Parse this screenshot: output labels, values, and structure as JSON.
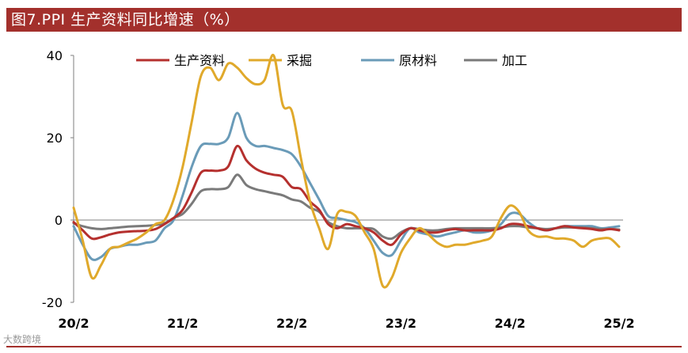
{
  "header": {
    "title": "图7.PPI 生产资料同比增速（%）"
  },
  "footer": {
    "source_mark": "大数跨境"
  },
  "colors": {
    "title_bg": "#a3302c",
    "生产资料": "#b5302e",
    "采掘": "#e0a92b",
    "原材料": "#6a9bb8",
    "加工": "#7a7a7a"
  },
  "chart_data": {
    "type": "line",
    "title": "图7.PPI 生产资料同比增速（%）",
    "xlabel": "",
    "ylabel": "",
    "x_ticks": [
      "20/2",
      "21/2",
      "22/2",
      "23/2",
      "24/2",
      "25/2"
    ],
    "y_ticks": [
      40,
      20,
      0,
      -20
    ],
    "ylim": [
      -20,
      40
    ],
    "legend_position": "top",
    "x": [
      "20/2",
      "20/3",
      "20/4",
      "20/5",
      "20/6",
      "20/7",
      "20/8",
      "20/9",
      "20/10",
      "20/11",
      "20/12",
      "21/1",
      "21/2",
      "21/3",
      "21/4",
      "21/5",
      "21/6",
      "21/7",
      "21/8",
      "21/9",
      "21/10",
      "21/11",
      "21/12",
      "22/1",
      "22/2",
      "22/3",
      "22/4",
      "22/5",
      "22/6",
      "22/7",
      "22/8",
      "22/9",
      "22/10",
      "22/11",
      "22/12",
      "23/1",
      "23/2",
      "23/3",
      "23/4",
      "23/5",
      "23/6",
      "23/7",
      "23/8",
      "23/9",
      "23/10",
      "23/11",
      "23/12",
      "24/1",
      "24/2",
      "24/3",
      "24/4",
      "24/5",
      "24/6",
      "24/7",
      "24/8",
      "24/9",
      "24/10",
      "24/11",
      "24/12",
      "25/1",
      "25/2"
    ],
    "series": [
      {
        "name": "生产资料",
        "color": "#b5302e",
        "values": [
          -0.5,
          -2.5,
          -4.5,
          -4.2,
          -3.5,
          -3.0,
          -2.8,
          -2.7,
          -2.6,
          -2.2,
          -1.0,
          0.5,
          2.5,
          6.8,
          11.5,
          12.0,
          12.0,
          13.0,
          18.0,
          14.5,
          12.5,
          11.5,
          11.0,
          10.5,
          8.0,
          7.5,
          4.5,
          2.5,
          -1.0,
          -2.0,
          -1.0,
          -1.5,
          -2.0,
          -3.0,
          -5.0,
          -6.0,
          -3.5,
          -2.0,
          -2.5,
          -3.0,
          -3.0,
          -2.5,
          -2.2,
          -2.5,
          -2.5,
          -2.5,
          -2.5,
          -2.0,
          -1.0,
          -1.0,
          -1.5,
          -2.0,
          -2.5,
          -2.0,
          -1.5,
          -1.8,
          -2.0,
          -2.2,
          -2.5,
          -2.2,
          -2.5
        ]
      },
      {
        "name": "采掘",
        "color": "#e0a92b",
        "values": [
          3.0,
          -5.0,
          -14.0,
          -11.0,
          -7.0,
          -6.5,
          -5.5,
          -4.5,
          -3.0,
          -1.0,
          0.0,
          5.0,
          13.0,
          24.0,
          35.0,
          37.0,
          34.0,
          38.0,
          37.0,
          34.5,
          33.0,
          34.0,
          40.0,
          28.0,
          26.5,
          15.0,
          4.5,
          -2.0,
          -7.0,
          1.5,
          2.0,
          1.0,
          -3.0,
          -7.0,
          -16.0,
          -14.0,
          -8.0,
          -4.5,
          -2.0,
          -3.5,
          -5.5,
          -6.5,
          -6.0,
          -6.0,
          -5.5,
          -5.0,
          -4.0,
          0.5,
          3.5,
          2.0,
          -2.5,
          -4.0,
          -4.0,
          -4.5,
          -4.5,
          -5.0,
          -6.5,
          -5.0,
          -4.5,
          -4.5,
          -6.5
        ]
      },
      {
        "name": "原材料",
        "color": "#6a9bb8",
        "values": [
          -1.5,
          -6.0,
          -9.5,
          -9.0,
          -7.0,
          -6.5,
          -6.0,
          -6.0,
          -5.5,
          -5.0,
          -2.0,
          0.0,
          6.0,
          13.0,
          18.0,
          18.5,
          18.5,
          20.0,
          26.0,
          20.0,
          18.0,
          18.0,
          17.5,
          17.0,
          16.0,
          13.0,
          9.0,
          5.0,
          1.0,
          0.5,
          0.0,
          -0.5,
          -2.0,
          -5.0,
          -8.0,
          -8.5,
          -5.0,
          -2.0,
          -3.0,
          -3.5,
          -4.0,
          -3.5,
          -3.0,
          -2.5,
          -3.0,
          -3.0,
          -2.5,
          -1.0,
          1.5,
          1.5,
          -0.5,
          -2.0,
          -2.5,
          -2.0,
          -1.5,
          -1.5,
          -1.5,
          -1.5,
          -2.0,
          -1.8,
          -1.5
        ]
      },
      {
        "name": "加工",
        "color": "#7a7a7a",
        "values": [
          -0.8,
          -1.5,
          -2.0,
          -2.2,
          -2.0,
          -1.8,
          -1.6,
          -1.5,
          -1.4,
          -1.2,
          -0.8,
          0.5,
          1.5,
          4.0,
          7.0,
          7.5,
          7.5,
          8.0,
          11.0,
          8.5,
          7.5,
          7.0,
          6.5,
          6.0,
          5.0,
          4.5,
          3.0,
          2.0,
          -0.5,
          -1.5,
          -2.0,
          -2.0,
          -2.0,
          -2.2,
          -4.0,
          -4.5,
          -3.0,
          -2.0,
          -2.2,
          -2.5,
          -2.5,
          -2.2,
          -2.0,
          -2.0,
          -2.0,
          -2.0,
          -2.0,
          -1.8,
          -1.5,
          -1.5,
          -1.8,
          -2.0,
          -2.2,
          -2.0,
          -1.8,
          -1.8,
          -1.8,
          -2.0,
          -2.2,
          -2.2,
          -2.3
        ]
      }
    ]
  }
}
